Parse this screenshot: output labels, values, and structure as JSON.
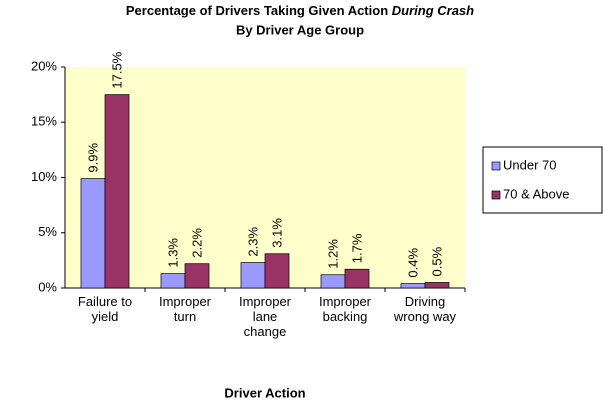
{
  "chart_data": {
    "type": "bar",
    "title": "Percentage of Drivers Taking Given Action",
    "title_emphasis": "During Crash",
    "subtitle": "By Driver Age Group",
    "x_label": "Driver Action",
    "categories": [
      "Failure to yield",
      "Improper turn",
      "Improper lane change",
      "Improper backing",
      "Driving wrong way"
    ],
    "series": [
      {
        "name": "Under 70",
        "color": "#9999ff",
        "values": [
          9.9,
          1.3,
          2.3,
          1.2,
          0.4
        ],
        "value_labels": [
          "9.9%",
          "1.3%",
          "2.3%",
          "1.2%",
          "0.4%"
        ]
      },
      {
        "name": "70 & Above",
        "color": "#993366",
        "values": [
          17.5,
          2.2,
          3.1,
          1.7,
          0.5
        ],
        "value_labels": [
          "17.5%",
          "2.2%",
          "3.1%",
          "1.7%",
          "0.5%"
        ]
      }
    ],
    "ylim": [
      0,
      20
    ],
    "yticks": [
      {
        "value": 0,
        "label": "0%"
      },
      {
        "value": 5,
        "label": "5%"
      },
      {
        "value": 10,
        "label": "10%"
      },
      {
        "value": 15,
        "label": "15%"
      },
      {
        "value": 20,
        "label": "20%"
      }
    ],
    "plot_background": "#ffffcc",
    "legend": "right"
  }
}
